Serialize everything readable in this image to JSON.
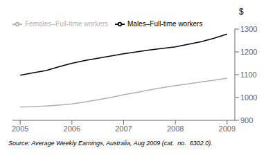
{
  "chart_data": {
    "type": "line",
    "y_label": "$",
    "annotations": [
      "Source: Average Weekly Earnings, Australia, Aug 2009 (cat.  no.  6302.0)."
    ],
    "x": [
      2005.0,
      2005.25,
      2005.5,
      2005.75,
      2006.0,
      2006.25,
      2006.5,
      2006.75,
      2007.0,
      2007.25,
      2007.5,
      2007.75,
      2008.0,
      2008.25,
      2008.5,
      2008.75,
      2009.0
    ],
    "series": [
      {
        "name": "Males–Full-time workers",
        "color": "#000000",
        "values": [
          1098,
          1108,
          1118,
          1135,
          1150,
          1162,
          1172,
          1182,
          1192,
          1200,
          1208,
          1215,
          1222,
          1233,
          1245,
          1260,
          1278
        ]
      },
      {
        "name": "Females–Full-time workers",
        "color": "#b0b0b0",
        "values": [
          958,
          960,
          963,
          967,
          972,
          980,
          990,
          1000,
          1012,
          1022,
          1033,
          1043,
          1052,
          1060,
          1068,
          1076,
          1085
        ]
      }
    ],
    "xlim": [
      2004.85,
      2009.15
    ],
    "ylim": [
      900,
      1300
    ],
    "xticks": [
      2005,
      2006,
      2007,
      2008,
      2009
    ],
    "yticks": [
      900,
      1000,
      1100,
      1200,
      1300
    ],
    "legend": "upper left",
    "grid": false
  }
}
